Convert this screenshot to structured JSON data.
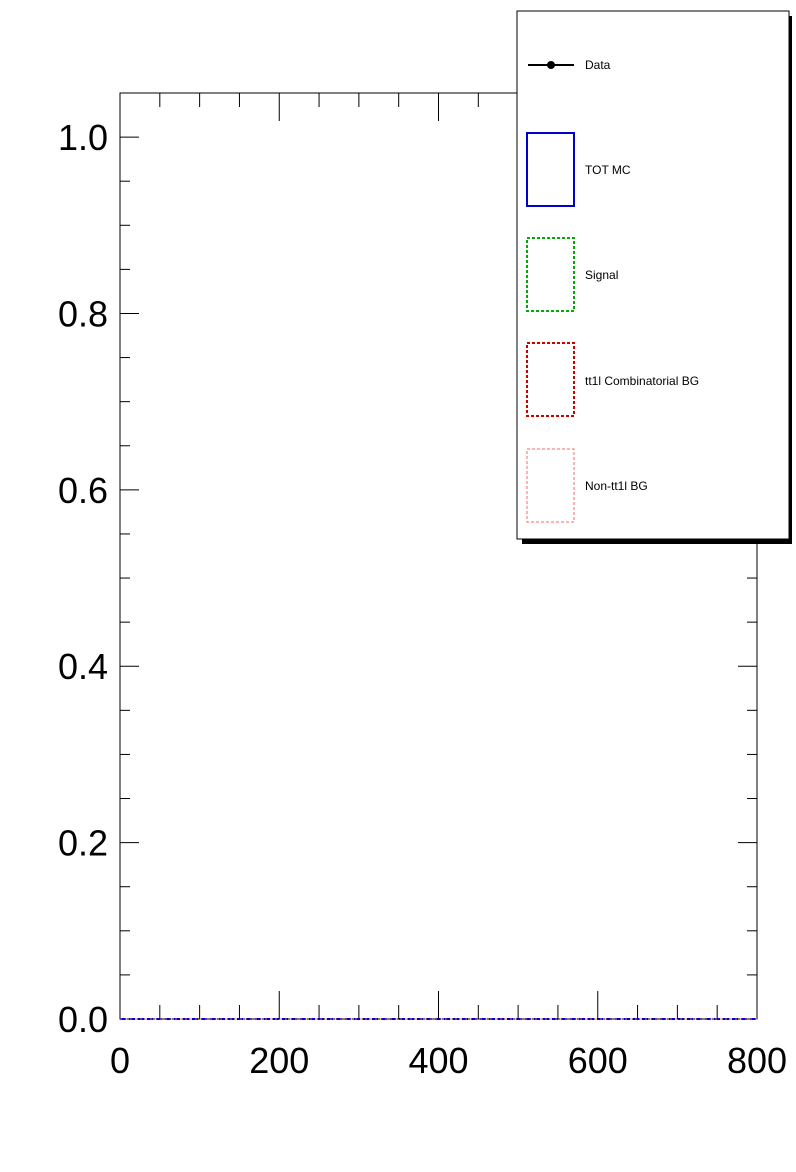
{
  "chart_data": {
    "type": "line",
    "title": "",
    "xlabel": "",
    "ylabel": "",
    "xlim": [
      0,
      800
    ],
    "ylim": [
      0,
      1.05
    ],
    "x_tick_labels": [
      "0",
      "200",
      "400",
      "600",
      "800"
    ],
    "y_tick_labels": [
      "0.0",
      "0.2",
      "0.4",
      "0.6",
      "0.8",
      "1.0"
    ],
    "grid": false,
    "legend_position": "top-right",
    "legend": [
      {
        "label": "Data",
        "style": "marker-line",
        "color": "#000000"
      },
      {
        "label": "TOT MC",
        "style": "box-solid",
        "color": "#0000cc"
      },
      {
        "label": "Signal",
        "style": "box-dashed",
        "color": "#00aa00"
      },
      {
        "label": "tt1l Combinatorial BG",
        "style": "box-dashed",
        "color": "#cc0000"
      },
      {
        "label": "Non-tt1l BG",
        "style": "box-dashed",
        "color": "#ff6666"
      }
    ],
    "series": [
      {
        "name": "TOT MC",
        "color": "#0000cc",
        "x": [
          0,
          800
        ],
        "y": [
          0,
          0
        ]
      },
      {
        "name": "Signal",
        "color": "#00aa00",
        "x": [
          0,
          800
        ],
        "y": [
          0,
          0
        ]
      },
      {
        "name": "tt1l Combinatorial BG",
        "color": "#cc0000",
        "x": [
          0,
          800
        ],
        "y": [
          0,
          0
        ]
      },
      {
        "name": "Non-tt1l BG",
        "color": "#ff6666",
        "x": [
          0,
          800
        ],
        "y": [
          0,
          0
        ]
      }
    ]
  }
}
